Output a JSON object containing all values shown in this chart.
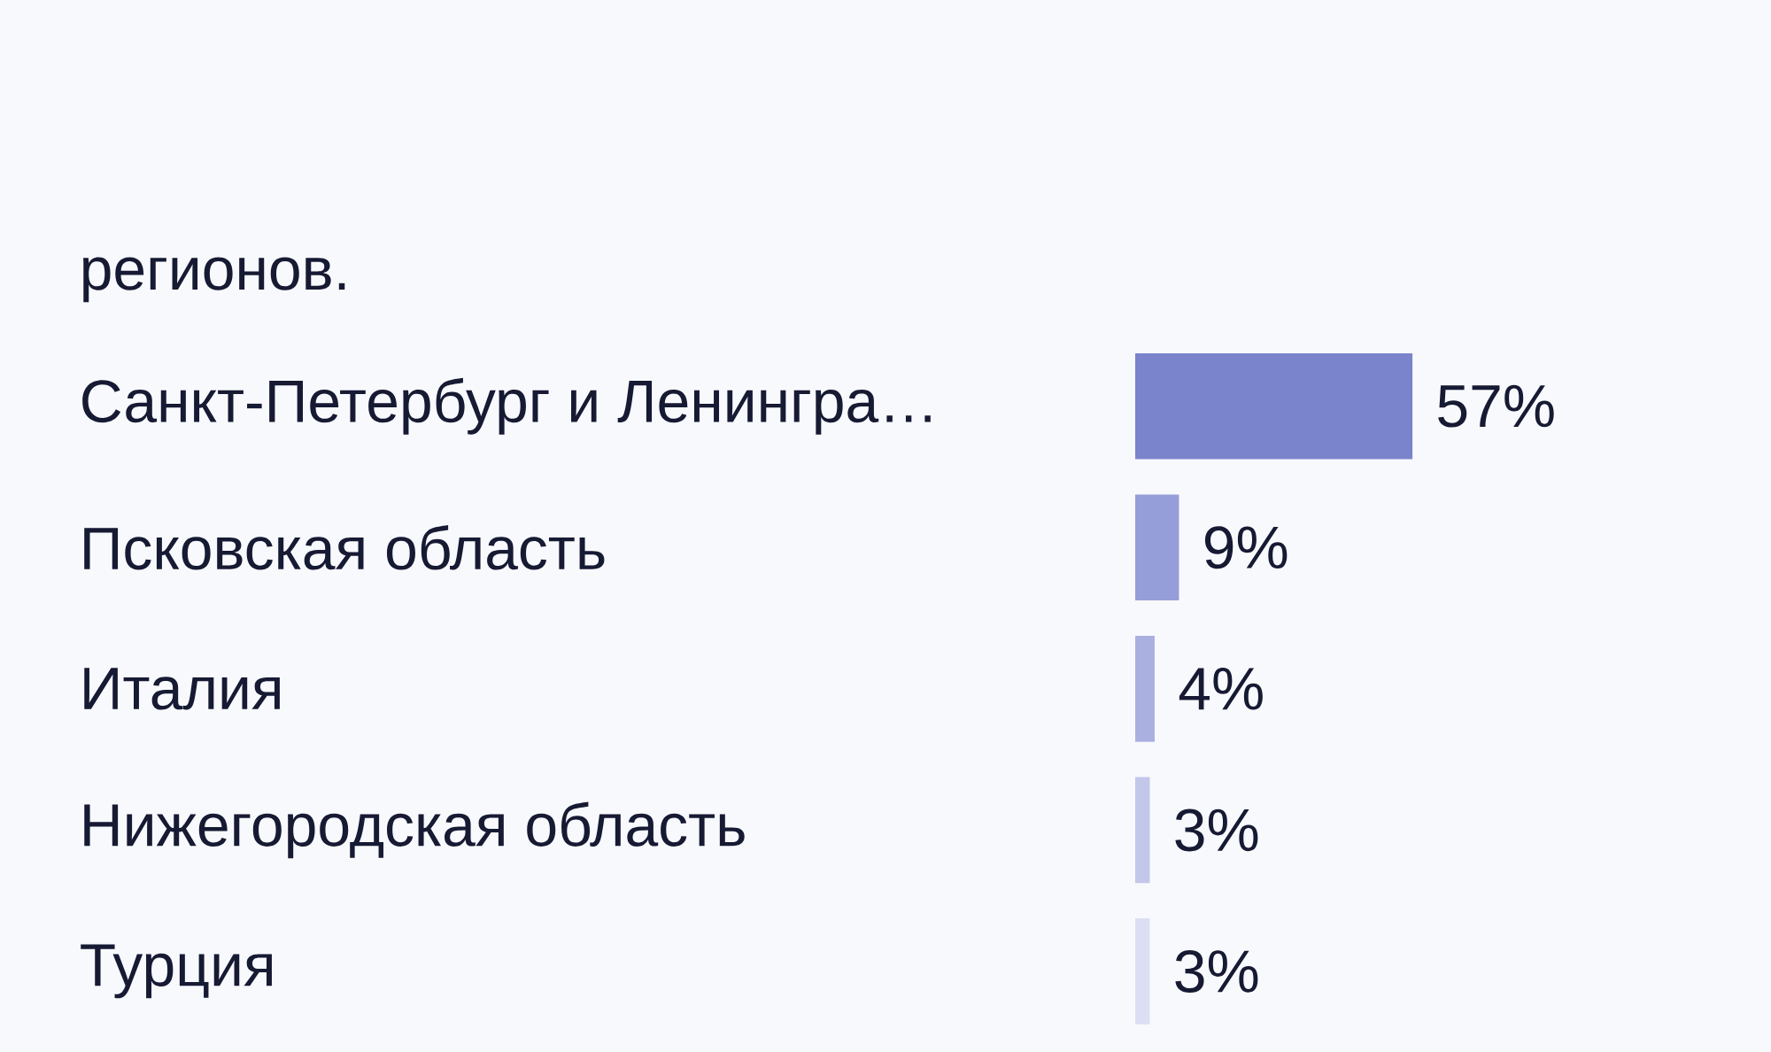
{
  "chart_data": {
    "type": "bar",
    "orientation": "horizontal",
    "title": "регионов.",
    "categories": [
      "Санкт-Петербург и Ленингра…",
      "Псковская область",
      "Италия",
      "Нижегородская область",
      "Турция"
    ],
    "values": [
      57,
      9,
      4,
      3,
      3
    ],
    "colors": [
      "#7a84cc",
      "#959ed8",
      "#aab1e0",
      "#c3c7ea",
      "#dcdff3"
    ],
    "value_labels": [
      "57%",
      "9%",
      "4%",
      "3%",
      "3%"
    ]
  }
}
